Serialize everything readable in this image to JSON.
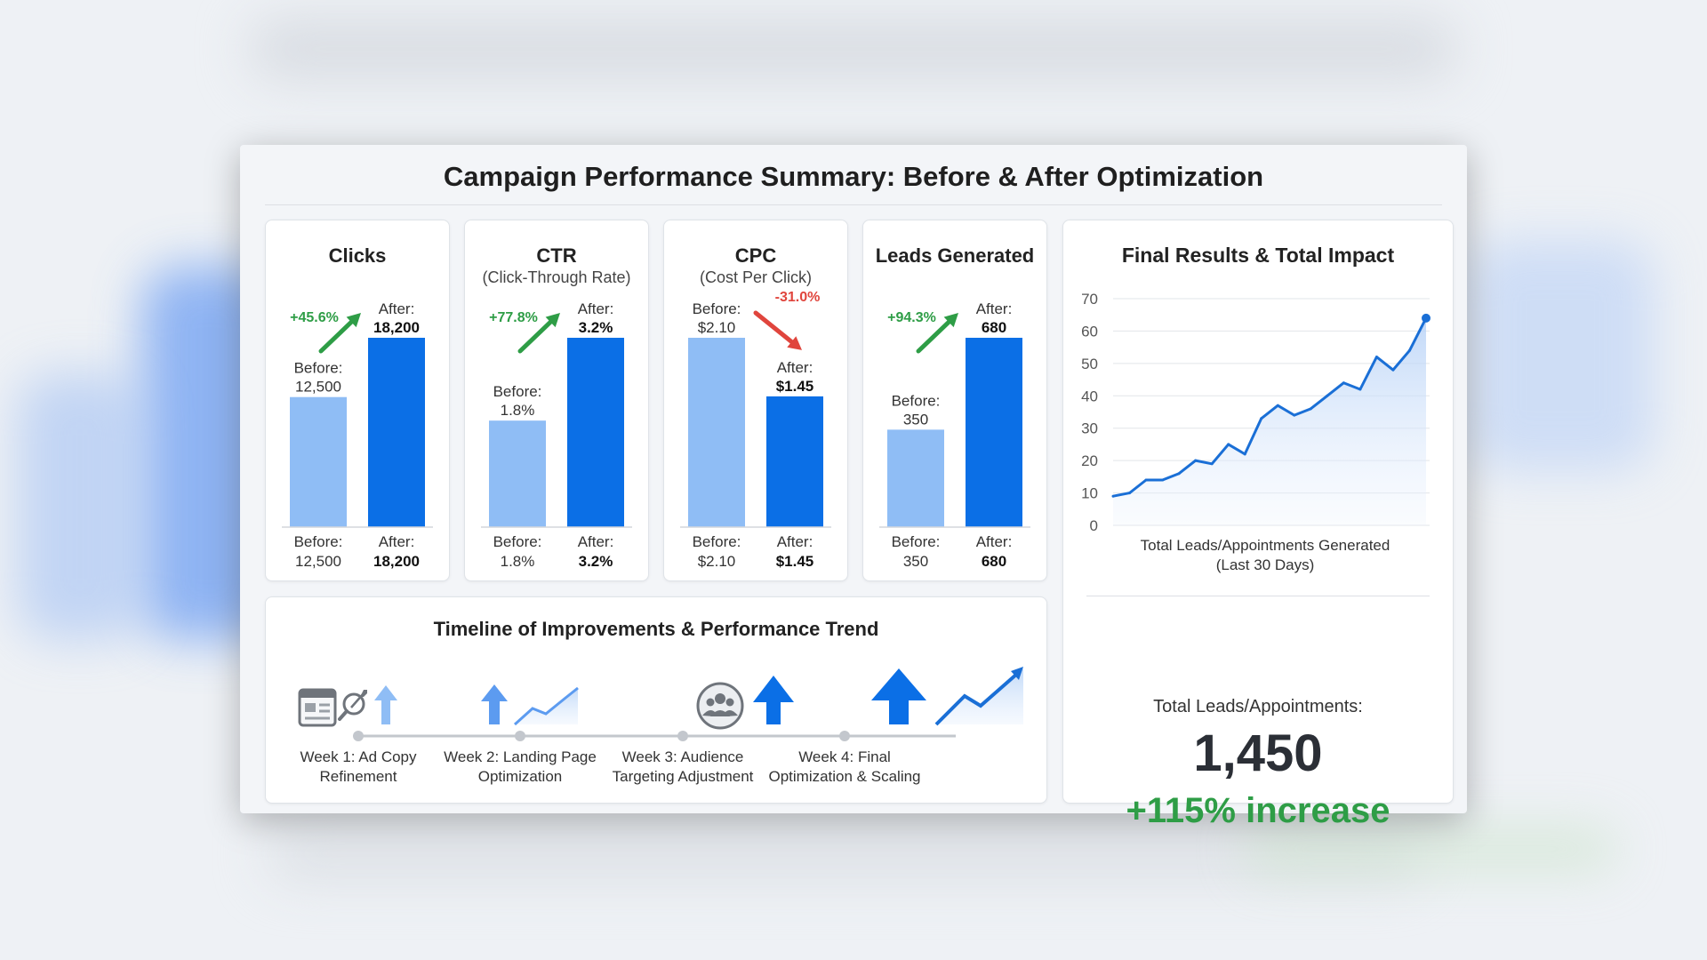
{
  "title": "Campaign Performance Summary: Before & After Optimization",
  "colors": {
    "before": "#8fbdf5",
    "after": "#0b6fe6",
    "positive": "#2e9d46",
    "negative": "#e0453d",
    "line": "#1a6fd6"
  },
  "chart_data": [
    {
      "type": "bar",
      "id": "clicks",
      "title": "Clicks",
      "subtitle": "",
      "categories": [
        "Before",
        "After"
      ],
      "values": [
        12500,
        18200
      ],
      "before_label": "Before:",
      "after_label": "After:",
      "before_display": "12,500",
      "after_display": "18,200",
      "change": "+45.6%",
      "direction": "up"
    },
    {
      "type": "bar",
      "id": "ctr",
      "title": "CTR",
      "subtitle": "(Click-Through Rate)",
      "categories": [
        "Before",
        "After"
      ],
      "values": [
        1.8,
        3.2
      ],
      "before_label": "Before:",
      "after_label": "After:",
      "before_display": "1.8%",
      "after_display": "3.2%",
      "change": "+77.8%",
      "direction": "up"
    },
    {
      "type": "bar",
      "id": "cpc",
      "title": "CPC",
      "subtitle": "(Cost Per Click)",
      "categories": [
        "Before",
        "After"
      ],
      "values": [
        2.1,
        1.45
      ],
      "before_label": "Before:",
      "after_label": "After:",
      "before_display": "$2.10",
      "after_display": "$1.45",
      "change": "-31.0%",
      "direction": "down"
    },
    {
      "type": "bar",
      "id": "leads",
      "title": "Leads Generated",
      "subtitle": "",
      "categories": [
        "Before",
        "After"
      ],
      "values": [
        350,
        680
      ],
      "before_label": "Before:",
      "after_label": "After:",
      "before_display": "350",
      "after_display": "680",
      "change": "+94.3%",
      "direction": "up"
    },
    {
      "type": "area",
      "id": "trend",
      "title": "Final Results & Total Impact",
      "xlabel": "Total Leads/Appointments Generated",
      "xlabel2": "(Last 30 Days)",
      "ylim": [
        0,
        70
      ],
      "yticks": [
        0,
        10,
        20,
        30,
        40,
        50,
        60,
        70
      ],
      "values": [
        9,
        10,
        14,
        14,
        16,
        20,
        19,
        25,
        22,
        33,
        37,
        34,
        36,
        40,
        44,
        42,
        52,
        48,
        54,
        64
      ]
    }
  ],
  "timeline": {
    "title": "Timeline of Improvements & Performance Trend",
    "steps": [
      {
        "line1": "Week 1: Ad Copy",
        "line2": "Refinement"
      },
      {
        "line1": "Week 2: Landing Page",
        "line2": "Optimization"
      },
      {
        "line1": "Week 3: Audience",
        "line2": "Targeting Adjustment"
      },
      {
        "line1": "Week 4: Final",
        "line2": "Optimization & Scaling"
      }
    ]
  },
  "totals": {
    "label": "Total Leads/Appointments:",
    "value": "1,450",
    "increase": "+115% increase"
  }
}
